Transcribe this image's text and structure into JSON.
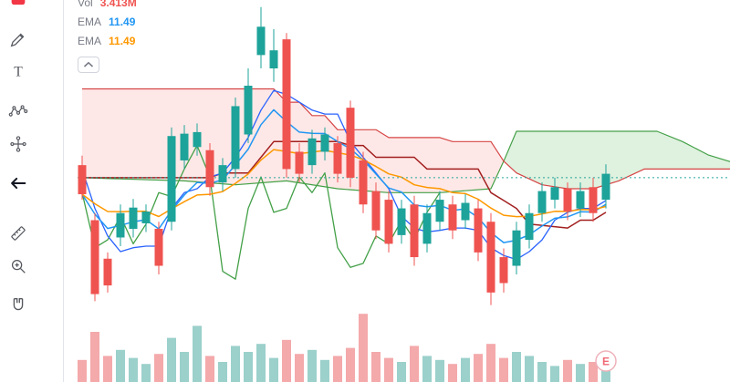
{
  "window": {
    "background": "#ffffff"
  },
  "toolbar": {
    "icons": [
      "active-tool-partial",
      "brush",
      "text",
      "xabcd-pattern",
      "forecast",
      "arrow-left",
      "measure-ruler",
      "zoom-in",
      "magnet"
    ]
  },
  "legend": {
    "rows": [
      {
        "label": "Vol",
        "value": "3.413M",
        "value_color": "#ef5350"
      },
      {
        "label": "EMA",
        "value": "11.49",
        "value_color": "#2196f3"
      },
      {
        "label": "EMA",
        "value": "11.49",
        "value_color": "#ff9800"
      }
    ],
    "collapse_icon": "chevron-up-icon"
  },
  "chart_data": {
    "type": "candlestick",
    "title": "",
    "y_domain": [
      9.75,
      13.75
    ],
    "price_line": 11.49,
    "grid": false,
    "candles": [
      [
        11.65,
        11.77,
        11.21,
        11.28,
        1.1
      ],
      [
        10.95,
        11.04,
        9.92,
        10.01,
        2.5
      ],
      [
        10.46,
        10.54,
        10.03,
        10.12,
        1.3
      ],
      [
        10.73,
        11.15,
        10.62,
        11.04,
        1.6
      ],
      [
        10.84,
        11.22,
        10.73,
        11.11,
        1.2
      ],
      [
        10.91,
        11.15,
        10.8,
        11.06,
        0.9
      ],
      [
        10.84,
        10.93,
        10.26,
        10.37,
        1.4
      ],
      [
        10.93,
        12.13,
        10.82,
        12.02,
        2.2
      ],
      [
        11.71,
        12.16,
        11.6,
        12.05,
        1.5
      ],
      [
        11.88,
        12.18,
        11.77,
        12.07,
        2.8
      ],
      [
        11.84,
        11.93,
        11.26,
        11.37,
        1.3
      ],
      [
        11.43,
        11.74,
        11.32,
        11.65,
        1.0
      ],
      [
        11.6,
        12.51,
        11.49,
        12.4,
        1.8
      ],
      [
        12.04,
        12.88,
        11.93,
        12.66,
        1.5
      ],
      [
        13.05,
        13.66,
        12.88,
        13.41,
        1.9
      ],
      [
        12.88,
        13.38,
        12.71,
        13.11,
        1.2
      ],
      [
        13.25,
        13.33,
        11.49,
        11.6,
        2.1
      ],
      [
        11.82,
        11.93,
        11.43,
        11.54,
        1.4
      ],
      [
        11.65,
        12.1,
        11.54,
        11.99,
        1.6
      ],
      [
        11.82,
        12.13,
        11.71,
        12.04,
        1.1
      ],
      [
        11.93,
        12.02,
        11.43,
        11.54,
        1.3
      ],
      [
        12.38,
        12.47,
        11.37,
        11.49,
        1.7
      ],
      [
        11.71,
        11.82,
        11.04,
        11.15,
        3.4
      ],
      [
        11.32,
        11.43,
        10.71,
        10.82,
        1.5
      ],
      [
        11.21,
        11.32,
        10.54,
        10.65,
        1.2
      ],
      [
        10.76,
        11.21,
        10.65,
        11.1,
        1.0
      ],
      [
        11.15,
        11.26,
        10.37,
        10.48,
        1.8
      ],
      [
        10.65,
        11.15,
        10.54,
        11.04,
        1.3
      ],
      [
        10.93,
        11.32,
        10.82,
        11.21,
        1.1
      ],
      [
        11.15,
        11.26,
        10.71,
        10.82,
        0.9
      ],
      [
        10.95,
        11.28,
        10.84,
        11.17,
        1.2
      ],
      [
        11.1,
        11.21,
        10.43,
        10.54,
        1.4
      ],
      [
        10.93,
        11.04,
        9.87,
        10.03,
        1.9
      ],
      [
        10.48,
        10.59,
        10.03,
        10.15,
        1.2
      ],
      [
        10.37,
        10.93,
        10.26,
        10.82,
        1.5
      ],
      [
        10.7,
        11.15,
        10.59,
        11.04,
        1.3
      ],
      [
        11.04,
        11.43,
        10.93,
        11.32,
        1.0
      ],
      [
        11.21,
        11.49,
        11.1,
        11.37,
        0.8
      ],
      [
        11.35,
        11.43,
        10.95,
        11.06,
        1.1
      ],
      [
        11.1,
        11.43,
        10.99,
        11.32,
        0.9
      ],
      [
        11.37,
        11.49,
        10.93,
        11.04,
        1.0
      ],
      [
        11.21,
        11.66,
        11.1,
        11.54,
        1.2
      ]
    ],
    "overlays": {
      "cloud_cross_index": 33,
      "lead_a": [
        [
          0,
          11.49
        ],
        [
          8,
          11.45
        ],
        [
          12,
          11.4
        ],
        [
          16,
          11.45
        ],
        [
          20,
          11.35
        ],
        [
          24,
          11.3
        ],
        [
          28,
          11.3
        ],
        [
          32,
          11.35
        ],
        [
          33,
          11.7
        ],
        [
          34,
          12.08
        ],
        [
          45,
          12.08
        ],
        [
          47,
          11.95
        ],
        [
          49,
          11.78
        ],
        [
          51,
          11.68
        ]
      ],
      "lead_b": [
        [
          0,
          12.62
        ],
        [
          15,
          12.62
        ],
        [
          16,
          12.45
        ],
        [
          17,
          12.45
        ],
        [
          18,
          12.28
        ],
        [
          19,
          12.28
        ],
        [
          20,
          12.1
        ],
        [
          23,
          12.1
        ],
        [
          24,
          12.0
        ],
        [
          28,
          12.0
        ],
        [
          29,
          11.95
        ],
        [
          32,
          11.95
        ],
        [
          33,
          11.7
        ],
        [
          34,
          11.55
        ],
        [
          36,
          11.4
        ],
        [
          38,
          11.35
        ],
        [
          40,
          11.35
        ],
        [
          42,
          11.45
        ],
        [
          44,
          11.6
        ],
        [
          51,
          11.6
        ]
      ],
      "base": [
        [
          0,
          11.49
        ],
        [
          10,
          11.49
        ],
        [
          11,
          11.55
        ],
        [
          13,
          11.55
        ],
        [
          14,
          11.75
        ],
        [
          15,
          11.95
        ],
        [
          20,
          11.95
        ],
        [
          21,
          11.9
        ],
        [
          22,
          11.9
        ],
        [
          23,
          11.75
        ],
        [
          26,
          11.75
        ],
        [
          27,
          11.6
        ],
        [
          31,
          11.6
        ],
        [
          32,
          11.3
        ],
        [
          33,
          11.2
        ],
        [
          34,
          11.1
        ],
        [
          35,
          10.9
        ],
        [
          38,
          10.85
        ],
        [
          39,
          10.95
        ],
        [
          40,
          10.95
        ],
        [
          41,
          11.05
        ]
      ],
      "conversion": [
        [
          0,
          11.6
        ],
        [
          1,
          11.1
        ],
        [
          2,
          10.75
        ],
        [
          3,
          10.55
        ],
        [
          4,
          10.6
        ],
        [
          5,
          10.62
        ],
        [
          6,
          10.62
        ],
        [
          7,
          11.1
        ],
        [
          8,
          11.3
        ],
        [
          9,
          11.35
        ],
        [
          10,
          11.5
        ],
        [
          11,
          11.55
        ],
        [
          12,
          11.75
        ],
        [
          13,
          12.0
        ],
        [
          14,
          12.35
        ],
        [
          15,
          12.6
        ],
        [
          16,
          12.55
        ],
        [
          17,
          12.45
        ],
        [
          18,
          12.35
        ],
        [
          19,
          12.3
        ],
        [
          20,
          12.3
        ],
        [
          21,
          11.95
        ],
        [
          22,
          11.75
        ],
        [
          23,
          11.55
        ],
        [
          24,
          11.35
        ],
        [
          25,
          11.0
        ],
        [
          26,
          10.85
        ],
        [
          27,
          10.8
        ],
        [
          28,
          10.82
        ],
        [
          29,
          10.85
        ],
        [
          30,
          10.85
        ],
        [
          31,
          10.82
        ],
        [
          32,
          10.6
        ],
        [
          33,
          10.5
        ],
        [
          34,
          10.45
        ],
        [
          35,
          10.55
        ],
        [
          36,
          10.7
        ],
        [
          37,
          10.95
        ],
        [
          38,
          11.05
        ],
        [
          39,
          11.1
        ],
        [
          40,
          11.1
        ],
        [
          41,
          11.2
        ]
      ],
      "lagging": [
        [
          0,
          11.3
        ],
        [
          1,
          10.6
        ],
        [
          2,
          10.7
        ],
        [
          3,
          11.0
        ],
        [
          4,
          10.65
        ],
        [
          5,
          10.9
        ],
        [
          6,
          11.3
        ],
        [
          7,
          11.25
        ],
        [
          8,
          11.6
        ],
        [
          9,
          11.9
        ],
        [
          10,
          11.5
        ],
        [
          11,
          10.3
        ],
        [
          12,
          10.2
        ],
        [
          13,
          11.1
        ],
        [
          14,
          11.5
        ],
        [
          15,
          11.05
        ],
        [
          16,
          11.1
        ],
        [
          17,
          11.5
        ],
        [
          18,
          11.3
        ],
        [
          19,
          11.55
        ],
        [
          20,
          10.6
        ],
        [
          21,
          10.35
        ],
        [
          22,
          10.4
        ],
        [
          23,
          10.75
        ],
        [
          24,
          10.65
        ],
        [
          25,
          10.95
        ],
        [
          26,
          10.7
        ],
        [
          27,
          11.05
        ],
        [
          28,
          11.3
        ]
      ]
    },
    "emas": [
      {
        "period": 9,
        "color": "#2196f3"
      },
      {
        "period": 20,
        "color": "#ff9800"
      }
    ],
    "colors": {
      "up": "#1da39a",
      "down": "#ef5350",
      "vol_up": "#9bd0cb",
      "vol_down": "#f4a9ab",
      "cloud_pink": "rgba(244,67,54,0.12)",
      "cloud_green": "rgba(76,175,80,0.18)",
      "lead_a_line": "#43a047",
      "lead_b_line": "#d64545",
      "base_line": "#a21f1f",
      "conversion_line": "#2962ff",
      "lagging_line": "#43a047",
      "price_line": "#26a69a"
    },
    "earnings_marker": {
      "index": 41,
      "label": "E",
      "ring": "#eeb2ba",
      "text": "#f06a76"
    }
  }
}
